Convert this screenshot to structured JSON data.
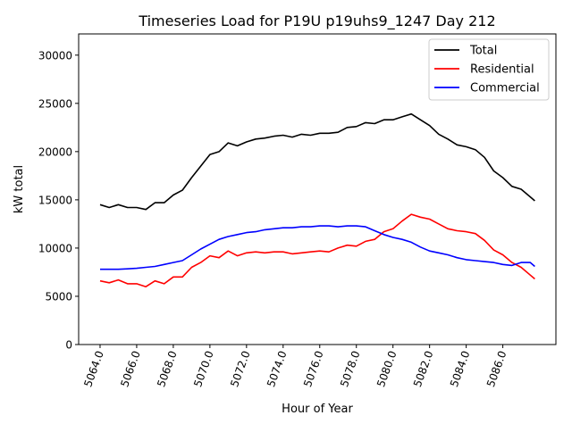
{
  "chart_data": {
    "type": "line",
    "title": "Timeseries Load for P19U p19uhs9_1247  Day 212",
    "xlabel": "Hour of Year",
    "ylabel": "kW total",
    "xlim": [
      5062.83,
      5088.9
    ],
    "ylim": [
      0,
      32200
    ],
    "xticks": [
      5064,
      5066,
      5068,
      5070,
      5072,
      5074,
      5076,
      5078,
      5080,
      5082,
      5084,
      5086
    ],
    "xtick_labels": [
      "5064.0",
      "5066.0",
      "5068.0",
      "5070.0",
      "5072.0",
      "5074.0",
      "5076.0",
      "5078.0",
      "5080.0",
      "5082.0",
      "5084.0",
      "5086.0"
    ],
    "yticks": [
      0,
      5000,
      10000,
      15000,
      20000,
      25000,
      30000
    ],
    "ytick_labels": [
      "0",
      "5000",
      "10000",
      "15000",
      "20000",
      "25000",
      "30000"
    ],
    "grid": false,
    "legend_position": "top-right",
    "x": [
      5064,
      5064.5,
      5065,
      5065.5,
      5066,
      5066.5,
      5067,
      5067.5,
      5068,
      5068.5,
      5069,
      5069.5,
      5070,
      5070.5,
      5071,
      5071.5,
      5072,
      5072.5,
      5073,
      5073.5,
      5074,
      5074.5,
      5075,
      5075.5,
      5076,
      5076.5,
      5077,
      5077.5,
      5078,
      5078.5,
      5079,
      5079.5,
      5080,
      5080.5,
      5081,
      5081.5,
      5082,
      5082.5,
      5083,
      5083.5,
      5084,
      5084.5,
      5085,
      5085.5,
      5086,
      5086.5,
      5087,
      5087.5,
      5087.75
    ],
    "series": [
      {
        "name": "Total",
        "color": "#000000",
        "values": [
          14500,
          14200,
          14500,
          14200,
          14200,
          14000,
          14700,
          14700,
          15500,
          16000,
          17300,
          18500,
          19700,
          20000,
          20900,
          20600,
          21000,
          21300,
          21400,
          21600,
          21700,
          21500,
          21800,
          21700,
          21900,
          21900,
          22000,
          22500,
          22600,
          23000,
          22900,
          23300,
          23300,
          23600,
          23900,
          23300,
          22700,
          21800,
          21300,
          20700,
          20500,
          20200,
          19400,
          18000,
          17300,
          16400,
          16100,
          15300,
          14900
        ]
      },
      {
        "name": "Residential",
        "color": "#ff0000",
        "values": [
          6600,
          6400,
          6700,
          6300,
          6300,
          6000,
          6600,
          6300,
          7000,
          7000,
          8000,
          8500,
          9200,
          9000,
          9700,
          9200,
          9500,
          9600,
          9500,
          9600,
          9600,
          9400,
          9500,
          9600,
          9700,
          9600,
          10000,
          10300,
          10200,
          10700,
          10900,
          11700,
          12000,
          12800,
          13500,
          13200,
          13000,
          12500,
          12000,
          11800,
          11700,
          11500,
          10800,
          9800,
          9300,
          8500,
          8000,
          7200,
          6800
        ]
      },
      {
        "name": "Commercial",
        "color": "#0000ff",
        "values": [
          7800,
          7800,
          7800,
          7850,
          7900,
          8000,
          8100,
          8300,
          8500,
          8700,
          9300,
          9900,
          10400,
          10900,
          11200,
          11400,
          11600,
          11700,
          11900,
          12000,
          12100,
          12100,
          12200,
          12200,
          12300,
          12300,
          12200,
          12300,
          12300,
          12200,
          11800,
          11400,
          11100,
          10900,
          10600,
          10100,
          9700,
          9500,
          9300,
          9000,
          8800,
          8700,
          8600,
          8500,
          8300,
          8200,
          8500,
          8500,
          8100
        ]
      }
    ]
  }
}
